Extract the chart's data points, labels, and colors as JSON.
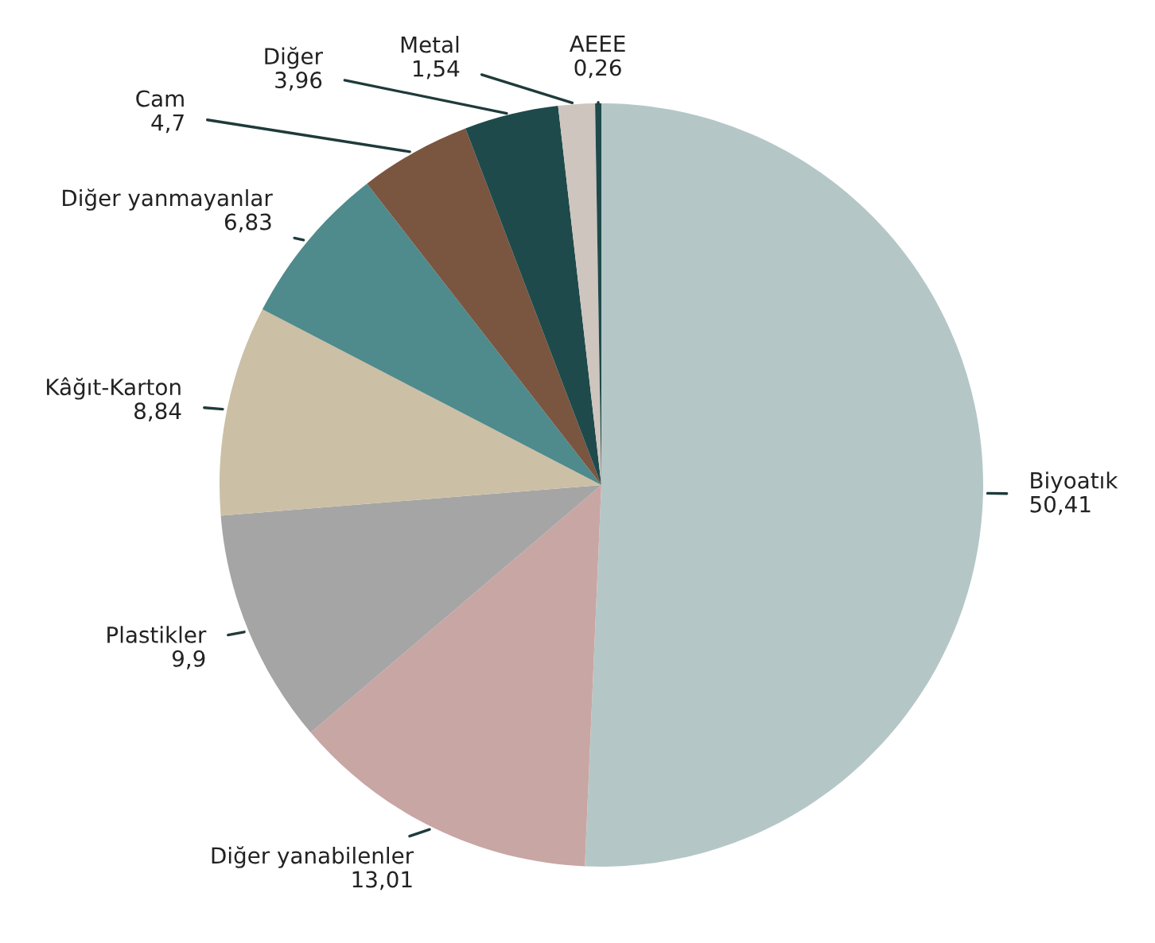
{
  "chart_data": {
    "type": "pie",
    "categories": [
      "Biyoatık",
      "Diğer yanabilenler",
      "Plastikler",
      "Kâğıt-Karton",
      "Diğer yanmayanlar",
      "Cam",
      "Diğer",
      "Metal",
      "AEEE"
    ],
    "values": [
      50.41,
      13.01,
      9.9,
      8.84,
      6.83,
      4.7,
      3.96,
      1.54,
      0.26
    ],
    "value_labels": [
      "50,41",
      "13,01",
      "9,9",
      "8,84",
      "6,83",
      "4,7",
      "3,96",
      "1,54",
      "0,26"
    ],
    "colors": [
      "#b4c7c6",
      "#c8a6a4",
      "#a5a5a5",
      "#cbbfa5",
      "#4f8a8c",
      "#7a5540",
      "#1f4a4b",
      "#cec5be",
      "#1f4a4b"
    ]
  }
}
